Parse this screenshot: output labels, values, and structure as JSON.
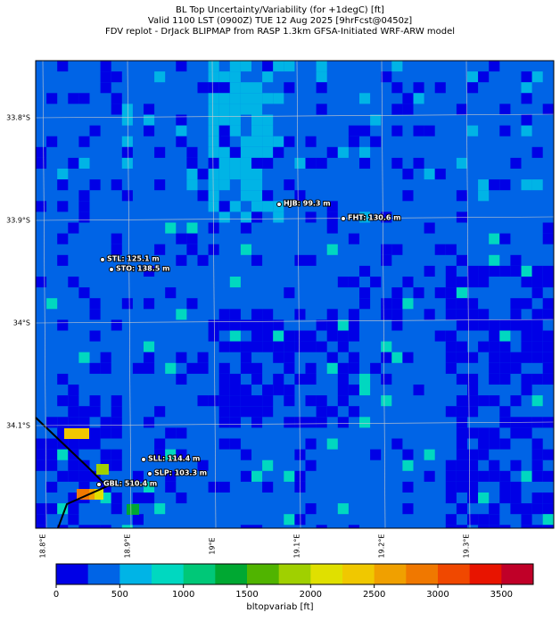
{
  "title": [
    "BL Top Uncertainty/Variability (for +1degC) [ft]",
    "Valid 1100 LST (0900Z) TUE 12 Aug 2025 [9hrFcst@0450z]",
    "FDV replot - DrJack BLIPMAP from RASP 1.3km GFSA-Initiated WRF-ARW model"
  ],
  "map": {
    "lat_labels": [
      "33.8°S",
      "33.9°S",
      "34°S",
      "34.1°S"
    ],
    "lon_labels": [
      "18.8°E",
      "18.9°E",
      "19°E",
      "19.1°E",
      "19.2°E",
      "19.3°E"
    ],
    "stations": [
      "HJB: 99.3 m",
      "FHT: 130.6 m",
      "STL: 125.1 m",
      "STO: 138.5 m",
      "SLL: 114.4 m",
      "SLP: 103.3 m",
      "GBL: 510.4 m"
    ]
  },
  "colorbar": {
    "label": "bltopvariab [ft]",
    "lim": [
      0,
      3750
    ],
    "ticks": [
      0,
      500,
      1000,
      1500,
      2000,
      2500,
      3000,
      3500
    ],
    "colors": [
      "#0000e6",
      "#0064e6",
      "#00b4e6",
      "#00d8c0",
      "#00c878",
      "#00a832",
      "#50b400",
      "#a0d000",
      "#e0e000",
      "#f0c800",
      "#f0a000",
      "#f07800",
      "#f04800",
      "#e81400",
      "#c00028"
    ]
  }
}
